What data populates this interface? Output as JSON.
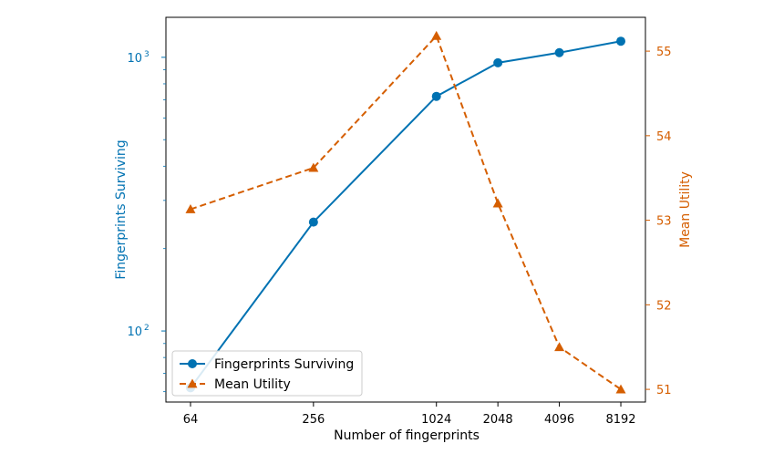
{
  "chart_data": {
    "type": "line",
    "xlabel": "Number of fingerprints",
    "ylabel_left": "Fingerprints Surviving",
    "ylabel_right": "Mean Utility",
    "x": [
      64,
      256,
      1024,
      2048,
      4096,
      8192
    ],
    "x_tick_labels": [
      "64",
      "256",
      "1024",
      "2048",
      "4096",
      "8192"
    ],
    "x_scale": "log2",
    "y_left_scale": "log",
    "y_left_ticks": [
      {
        "value": 100,
        "base": "10",
        "exp": "2"
      },
      {
        "value": 1000,
        "base": "10",
        "exp": "3"
      }
    ],
    "y_left_lim": [
      55,
      1400
    ],
    "y_right_ticks": [
      "51",
      "52",
      "53",
      "54",
      "55"
    ],
    "y_right_lim": [
      50.85,
      55.4
    ],
    "grid": false,
    "legend_position": "lower-left",
    "colors": {
      "left": "#0072b2",
      "right": "#d55e00"
    },
    "series": [
      {
        "name": "Fingerprints Surviving",
        "axis": "left",
        "style": "solid",
        "marker": "circle",
        "values": [
          62,
          250,
          720,
          955,
          1040,
          1145
        ]
      },
      {
        "name": "Mean Utility",
        "axis": "right",
        "style": "dashed",
        "marker": "triangle",
        "values": [
          53.13,
          53.62,
          55.18,
          53.2,
          51.5,
          51.0
        ]
      }
    ]
  }
}
